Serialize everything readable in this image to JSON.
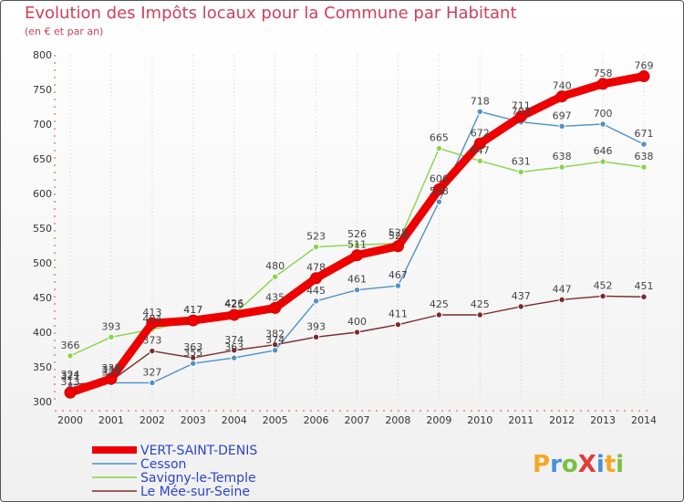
{
  "chart_data": {
    "type": "line",
    "title": "Evolution des Impôts locaux pour la Commune par Habitant",
    "subtitle": "(en € et par an)",
    "categories": [
      "2000",
      "2001",
      "2002",
      "2003",
      "2004",
      "2005",
      "2006",
      "2007",
      "2008",
      "2009",
      "2010",
      "2011",
      "2012",
      "2013",
      "2014"
    ],
    "ylim": [
      300,
      800
    ],
    "yticks": [
      300,
      350,
      400,
      450,
      500,
      550,
      600,
      650,
      700,
      750,
      800
    ],
    "series": [
      {
        "name": "Le Mée-sur-Seine",
        "color": "#7a2a2a",
        "values": [
          324,
          330,
          373,
          363,
          374,
          382,
          393,
          400,
          411,
          425,
          425,
          437,
          447,
          452,
          451
        ]
      },
      {
        "name": "Cesson",
        "color": "#4f90c8",
        "values": [
          321,
          327,
          327,
          355,
          363,
          374,
          445,
          461,
          467,
          588,
          718,
          703,
          697,
          700,
          671
        ]
      },
      {
        "name": "Savigny-le-Temple",
        "color": "#88d44a",
        "values": [
          366,
          393,
          404,
          417,
          426,
          480,
          523,
          526,
          528,
          665,
          647,
          631,
          638,
          646,
          638
        ]
      },
      {
        "name": "VERT-SAINT-DENIS",
        "color": "#ee0000",
        "values": [
          313,
          333,
          413,
          417,
          425,
          435,
          478,
          511,
          524,
          606,
          672,
          711,
          740,
          758,
          769
        ]
      }
    ]
  },
  "legend": [
    "VERT-SAINT-DENIS",
    "Cesson",
    "Savigny-le-Temple",
    "Le Mée-sur-Seine"
  ],
  "logo": {
    "text": "ProXiti"
  }
}
